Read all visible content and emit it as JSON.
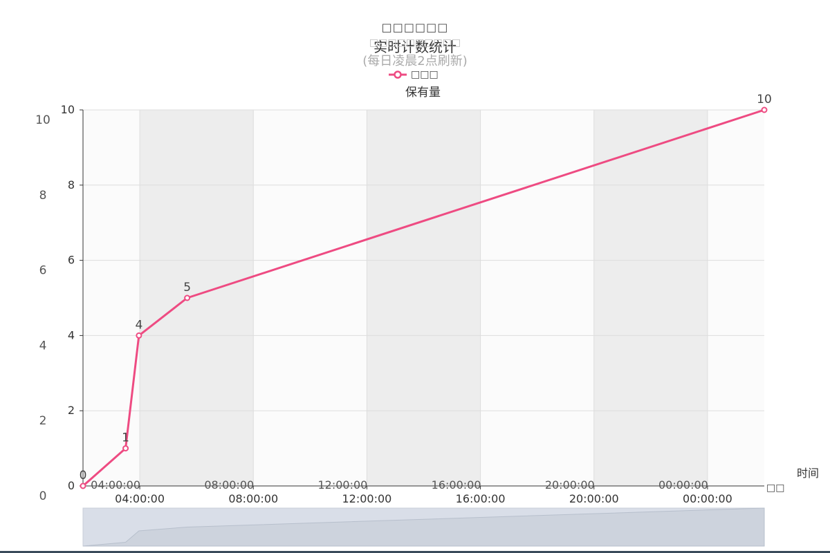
{
  "chart_data": {
    "type": "line",
    "title_ghost": "□□□□□□",
    "title": "实时计数统计",
    "subtitle_ghost": "□□□□□□□□□□",
    "subtitle": "(每日凌晨2点刷新)",
    "legend_ghost": "□□□",
    "legend": "保有量",
    "series": [
      {
        "name": "保有量",
        "color": "#ee4b82",
        "points": [
          {
            "t": "02:00",
            "y": 0,
            "label": "0"
          },
          {
            "t": "03:30",
            "y": 1,
            "label": "1"
          },
          {
            "t": "03:58",
            "y": 4,
            "label": "4"
          },
          {
            "t": "05:40",
            "y": 5,
            "label": "5"
          },
          {
            "t": "02:00 (+1d)",
            "y": 10,
            "label": "10"
          }
        ]
      }
    ],
    "x_time_hours": [
      2.0,
      3.5,
      3.97,
      5.67,
      26.0
    ],
    "x_range_hours": [
      2,
      26
    ],
    "xlabel": "时间",
    "xlabel_ghost": "□□",
    "ylim": [
      0,
      10
    ],
    "y_ticks": [
      "0",
      "2",
      "4",
      "6",
      "8",
      "10"
    ],
    "x_tick_hours": [
      4,
      8,
      12,
      16,
      20,
      24
    ],
    "x_ticks": [
      "04:00:00",
      "08:00:00",
      "12:00:00",
      "16:00:00",
      "20:00:00",
      "00:00:00"
    ],
    "x_ticks_ghost": [
      "04:00:00",
      "08:00:00",
      "12:00:00",
      "16:00:00",
      "20:00:00",
      "00:00:00"
    ],
    "grid": true,
    "band_colors": [
      "#fbfbfb",
      "#ededed"
    ],
    "axis_color": "#333333",
    "gridline_color": "#dddddd",
    "zoom_slider": {
      "fill_color": "#d6dce6",
      "line_color": "#b7bfcc",
      "trend": [
        0,
        1,
        4,
        5,
        10
      ]
    }
  }
}
